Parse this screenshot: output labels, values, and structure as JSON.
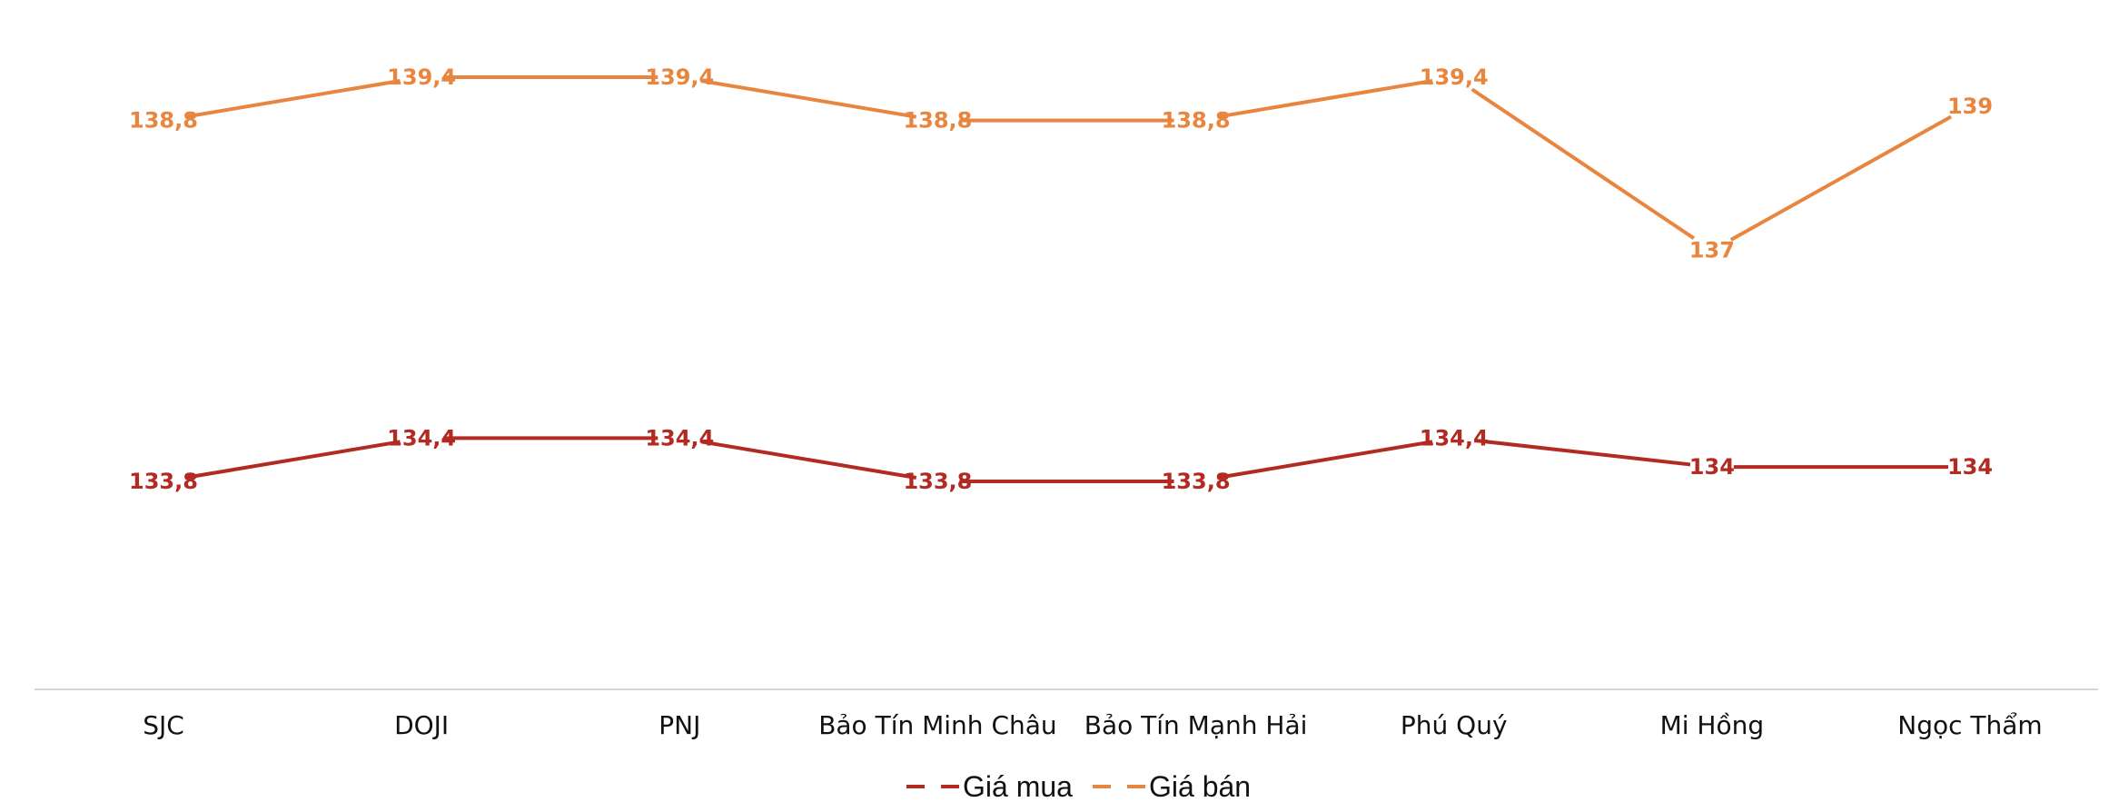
{
  "chart_data": {
    "type": "line",
    "categories": [
      "SJC",
      "DOJI",
      "PNJ",
      "Bảo Tín Minh Châu",
      "Bảo Tín Mạnh Hải",
      "Phú Quý",
      "Mi Hồng",
      "Ngọc Thẩm"
    ],
    "series": [
      {
        "name": "Giá mua",
        "color": "#b22a22",
        "values": [
          133.8,
          134.4,
          134.4,
          133.8,
          133.8,
          134.4,
          134,
          134
        ],
        "labels": [
          "133,8",
          "134,4",
          "134,4",
          "133,8",
          "133,8",
          "134,4",
          "134",
          "134"
        ]
      },
      {
        "name": "Giá bán",
        "color": "#e8853f",
        "values": [
          138.8,
          139.4,
          139.4,
          138.8,
          138.8,
          139.4,
          137,
          139
        ],
        "labels": [
          "138,8",
          "139,4",
          "139,4",
          "138,8",
          "138,8",
          "139,4",
          "137",
          "139"
        ]
      }
    ],
    "title": "",
    "xlabel": "",
    "ylabel": "",
    "grid": false,
    "legend": "bottom-center"
  }
}
